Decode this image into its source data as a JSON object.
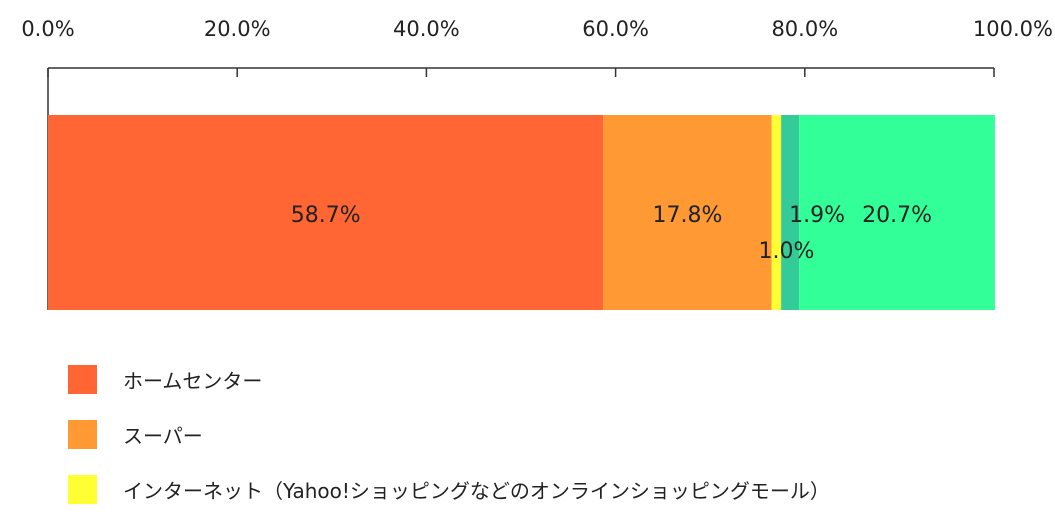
{
  "chart_data": {
    "type": "bar",
    "orientation": "horizontal-stacked-100",
    "xlim": [
      0,
      100
    ],
    "x_ticks": [
      "0.0%",
      "20.0%",
      "40.0%",
      "60.0%",
      "80.0%",
      "100.0%"
    ],
    "grid": false,
    "legend_position": "bottom-left",
    "series": [
      {
        "name": "ホームセンター",
        "value": 58.7,
        "label": "58.7%",
        "color": "#ff6633"
      },
      {
        "name": "スーパー",
        "value": 17.8,
        "label": "17.8%",
        "color": "#ff9933"
      },
      {
        "name": "インターネット（Yahoo!ショッピングなどのオンラインショッピングモール）",
        "value": 1.0,
        "label": "1.0%",
        "color": "#ffff33"
      },
      {
        "name": "",
        "value": 1.9,
        "label": "1.9%",
        "color": "#33cc99"
      },
      {
        "name": "",
        "value": 20.7,
        "label": "20.7%",
        "color": "#33ff99"
      }
    ]
  }
}
